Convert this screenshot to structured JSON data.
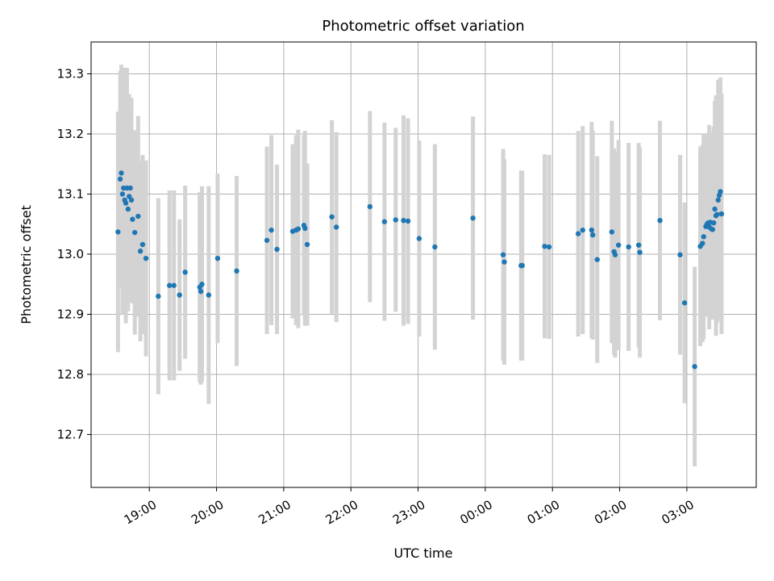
{
  "chart_data": {
    "type": "scatter",
    "title": "Photometric offset variation",
    "xlabel": "UTC time",
    "ylabel": "Photometric offset",
    "grid": true,
    "xlim": [
      "18:08",
      "04:02"
    ],
    "ylim": [
      12.612,
      13.353
    ],
    "x_tick_labels": [
      "19:00",
      "20:00",
      "21:00",
      "22:00",
      "23:00",
      "00:00",
      "01:00",
      "02:00",
      "03:00"
    ],
    "y_tick_labels": [
      "12.7",
      "12.8",
      "12.9",
      "13.0",
      "13.1",
      "13.2",
      "13.3"
    ],
    "y_ticks": [
      12.7,
      12.8,
      12.9,
      13.0,
      13.1,
      13.2,
      13.3
    ],
    "colors": {
      "point": "#1f77b4",
      "errorbar": "#d3d3d3",
      "grid": "#b0b0b0"
    },
    "series": [
      {
        "x": [
          "18:32",
          "18:34",
          "18:35",
          "18:36",
          "18:37",
          "18:38",
          "18:39",
          "18:40",
          "18:41",
          "18:42",
          "18:43",
          "18:44",
          "18:45",
          "18:47",
          "18:50",
          "18:52",
          "18:54",
          "18:57",
          "19:08",
          "19:18",
          "19:22",
          "19:27",
          "19:32",
          "19:45",
          "19:46",
          "19:47",
          "19:53",
          "20:01",
          "20:18",
          "20:45",
          "20:49",
          "20:54",
          "21:08",
          "21:11",
          "21:13",
          "21:18",
          "21:19",
          "21:21",
          "21:43",
          "21:47",
          "22:17",
          "22:30",
          "22:40",
          "22:47",
          "22:51",
          "23:01",
          "23:15",
          "23:49",
          "00:16",
          "00:17",
          "00:32",
          "00:33",
          "00:53",
          "00:57",
          "01:23",
          "01:27",
          "01:35",
          "01:36",
          "01:40",
          "01:53",
          "01:55",
          "01:56",
          "01:59",
          "02:08",
          "02:17",
          "02:18",
          "02:36",
          "02:54",
          "02:58",
          "03:07",
          "03:12",
          "03:14",
          "03:15",
          "03:17",
          "03:18",
          "03:19",
          "03:20",
          "03:21",
          "03:22",
          "03:23",
          "03:24",
          "03:25",
          "03:26",
          "03:27",
          "03:28",
          "03:29",
          "03:30",
          "03:31"
        ],
        "y": [
          13.037,
          13.125,
          13.135,
          13.1,
          13.11,
          13.09,
          13.085,
          13.11,
          13.075,
          13.096,
          13.11,
          13.09,
          13.058,
          13.036,
          13.063,
          13.005,
          13.016,
          12.993,
          12.93,
          12.948,
          12.948,
          12.932,
          12.97,
          12.945,
          12.938,
          12.95,
          12.932,
          12.993,
          12.972,
          13.023,
          13.04,
          13.008,
          13.038,
          13.04,
          13.042,
          13.048,
          13.043,
          13.016,
          13.062,
          13.045,
          13.079,
          13.054,
          13.057,
          13.056,
          13.055,
          13.026,
          13.012,
          13.06,
          12.999,
          12.987,
          12.981,
          12.981,
          13.013,
          13.012,
          13.034,
          13.04,
          13.04,
          13.032,
          12.991,
          13.037,
          13.004,
          12.999,
          13.015,
          13.012,
          13.015,
          13.003,
          13.056,
          12.999,
          12.919,
          12.813,
          13.013,
          13.018,
          13.029,
          13.046,
          13.05,
          13.052,
          13.045,
          13.053,
          13.042,
          13.041,
          13.052,
          13.075,
          13.064,
          13.066,
          13.09,
          13.098,
          13.104,
          13.067
        ],
        "yerr": [
          0.2,
          0.18,
          0.18,
          0.2,
          0.2,
          0.18,
          0.2,
          0.2,
          0.17,
          0.17,
          0.14,
          0.17,
          0.14,
          0.17,
          0.167,
          0.15,
          0.149,
          0.163,
          0.163,
          0.158,
          0.158,
          0.126,
          0.144,
          0.158,
          0.155,
          0.163,
          0.181,
          0.141,
          0.158,
          0.156,
          0.158,
          0.141,
          0.145,
          0.158,
          0.165,
          0.15,
          0.162,
          0.135,
          0.161,
          0.158,
          0.159,
          0.165,
          0.153,
          0.175,
          0.171,
          0.163,
          0.171,
          0.169,
          0.176,
          0.171,
          0.158,
          0.158,
          0.153,
          0.153,
          0.171,
          0.173,
          0.18,
          0.174,
          0.172,
          0.185,
          0.172,
          0.171,
          0.175,
          0.173,
          0.17,
          0.175,
          0.166,
          0.166,
          0.167,
          0.166,
          0.166,
          0.164,
          0.17,
          0.15,
          0.15,
          0.14,
          0.17,
          0.15,
          0.15,
          0.15,
          0.16,
          0.18,
          0.2,
          0.18,
          0.2,
          0.19,
          0.19,
          0.2
        ]
      }
    ]
  }
}
